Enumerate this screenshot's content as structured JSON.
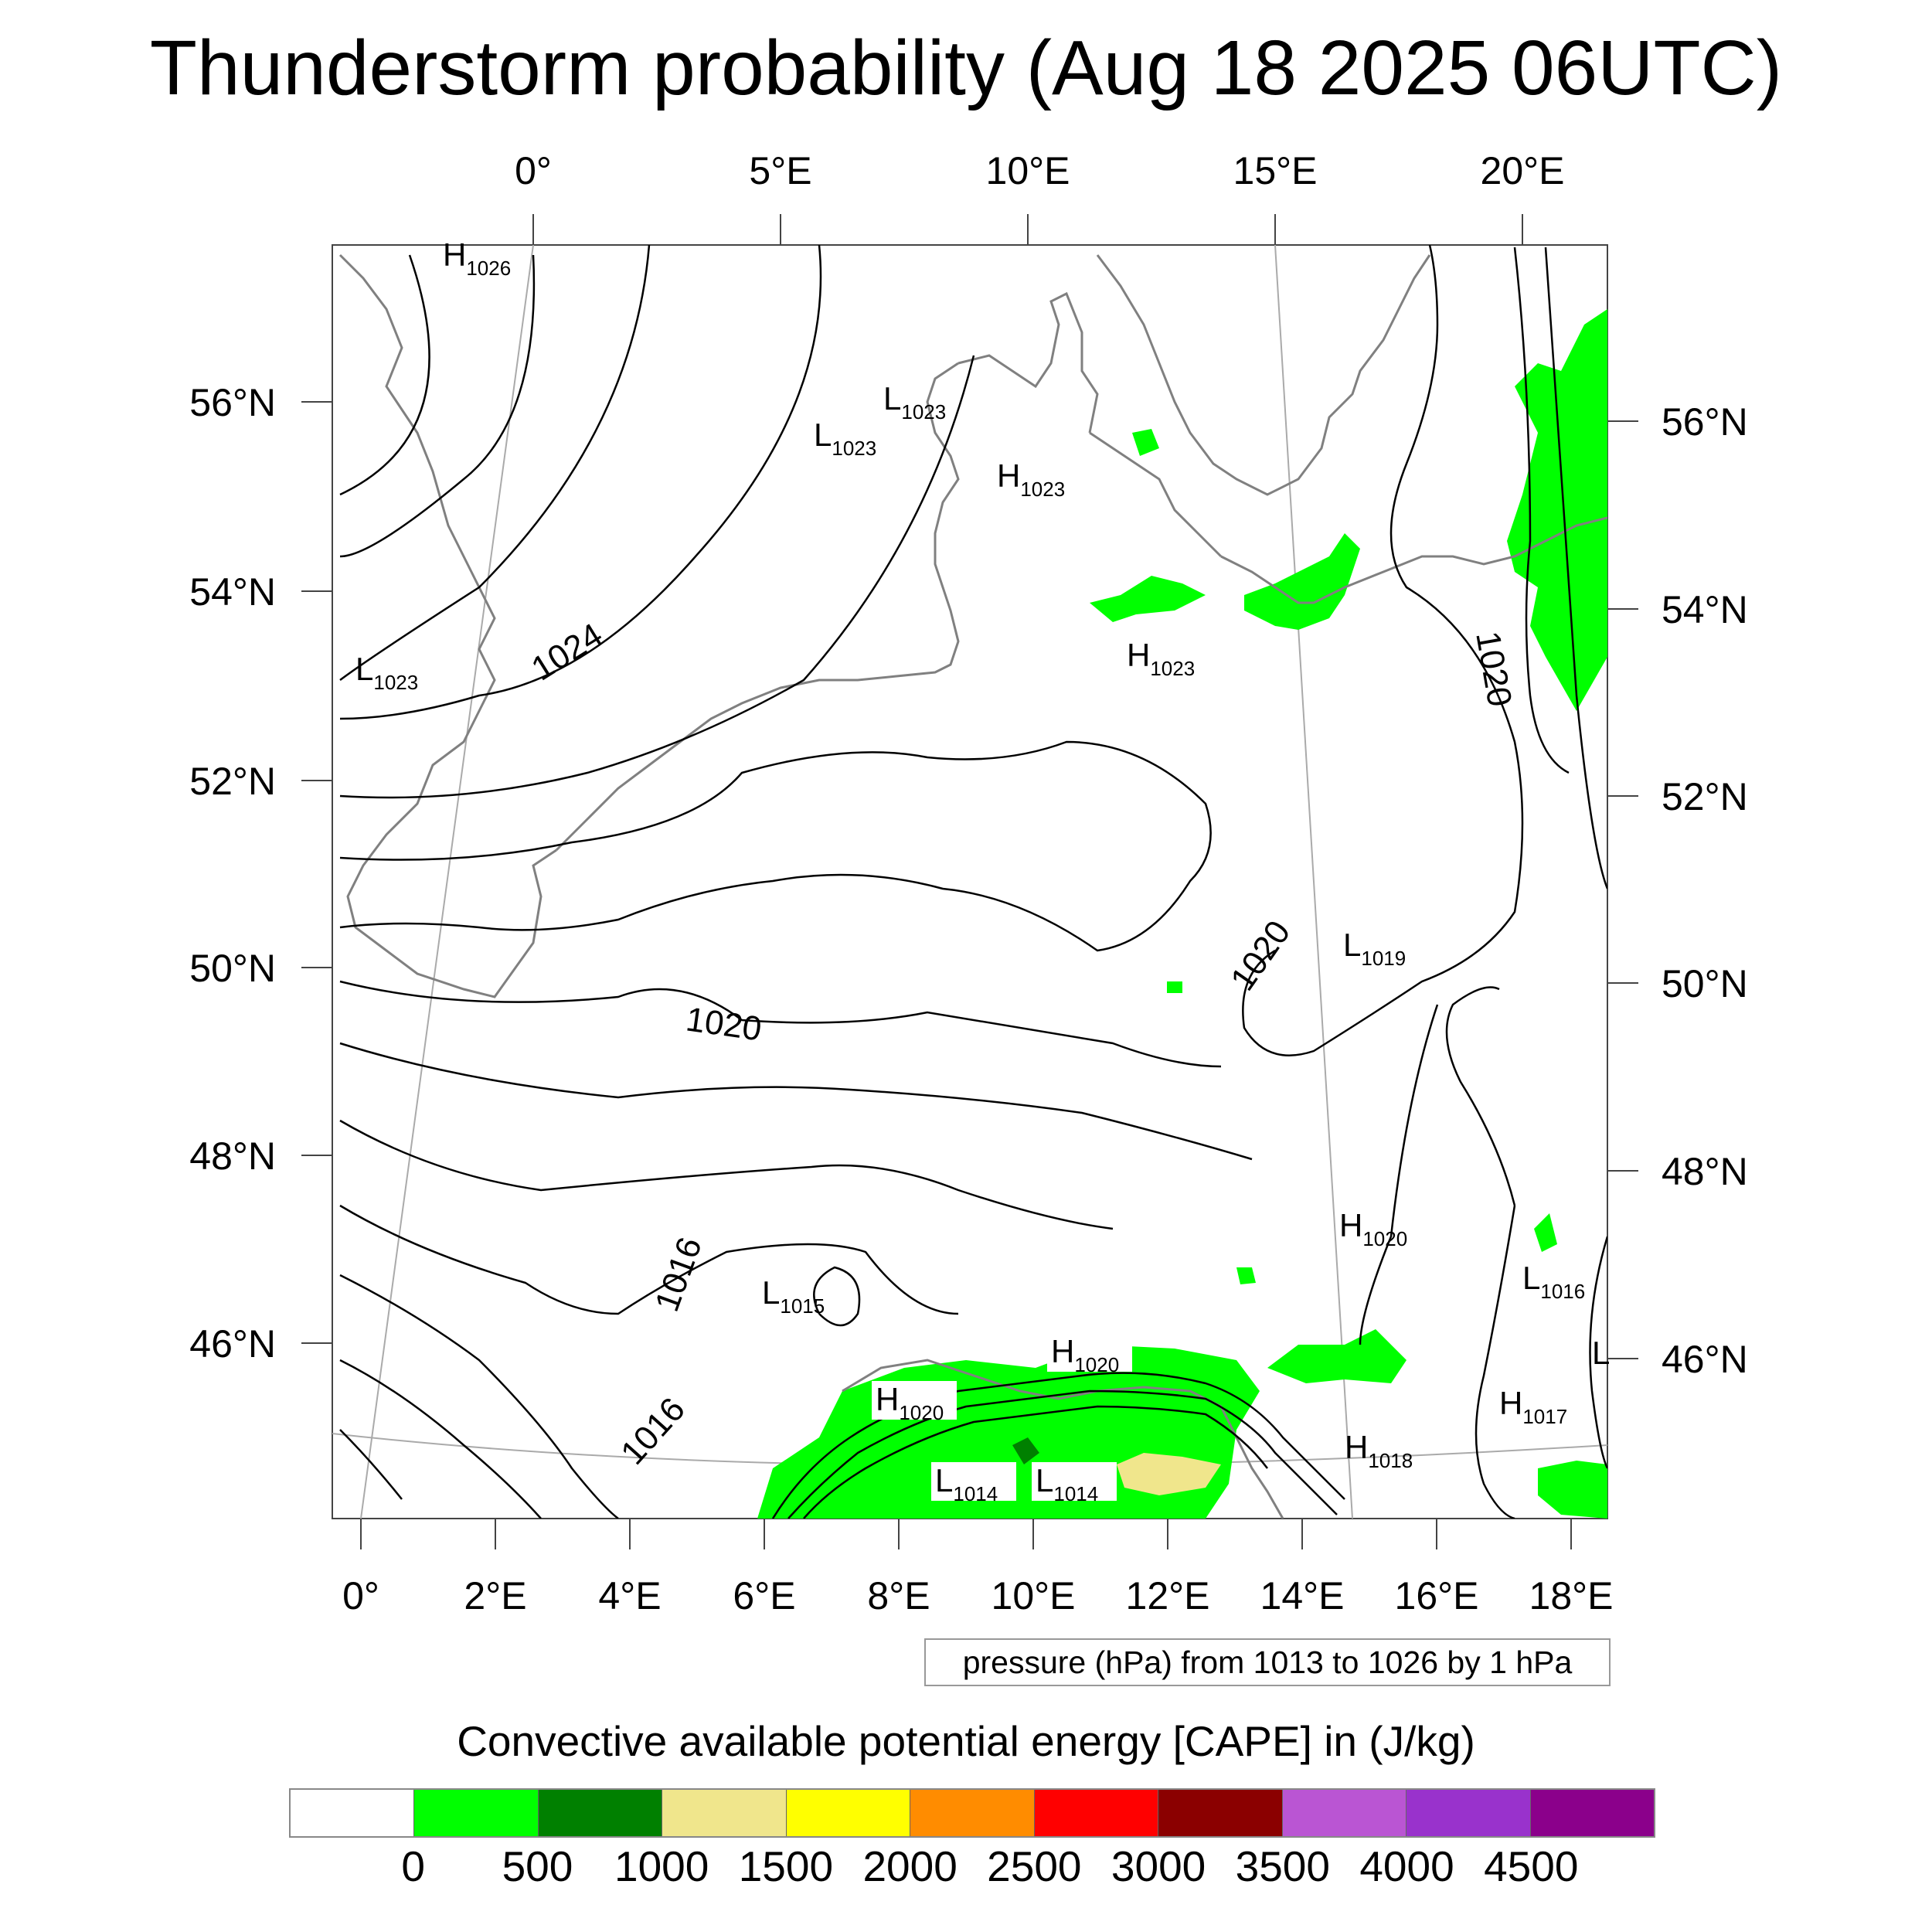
{
  "title": "Thunderstorm probability (Aug 18 2025 06UTC)",
  "axes": {
    "top_lon": [
      "0°",
      "5°E",
      "10°E",
      "15°E",
      "20°E"
    ],
    "bottom_lon": [
      "0°",
      "2°E",
      "4°E",
      "6°E",
      "8°E",
      "10°E",
      "12°E",
      "14°E",
      "16°E",
      "18°E"
    ],
    "left_lat": [
      "56°N",
      "54°N",
      "52°N",
      "50°N",
      "48°N",
      "46°N"
    ],
    "right_lat": [
      "56°N",
      "54°N",
      "52°N",
      "50°N",
      "48°N",
      "46°N"
    ]
  },
  "contour_labels": [
    "1024",
    "1020",
    "1020",
    "1020",
    "1016",
    "1016"
  ],
  "pressure_centers": [
    {
      "type": "H",
      "value": "1026"
    },
    {
      "type": "L",
      "value": "1023"
    },
    {
      "type": "L",
      "value": "1023"
    },
    {
      "type": "L",
      "value": "1023"
    },
    {
      "type": "H",
      "value": "1023"
    },
    {
      "type": "H",
      "value": "1023"
    },
    {
      "type": "L",
      "value": "1019"
    },
    {
      "type": "H",
      "value": "1020"
    },
    {
      "type": "L",
      "value": "1015"
    },
    {
      "type": "L",
      "value": "1016"
    },
    {
      "type": "H",
      "value": "1020"
    },
    {
      "type": "H",
      "value": "1020"
    },
    {
      "type": "H",
      "value": "1017"
    },
    {
      "type": "H",
      "value": "1018"
    },
    {
      "type": "L",
      "value": "1014"
    },
    {
      "type": "L",
      "value": "1014"
    },
    {
      "type": "L",
      "value": ""
    }
  ],
  "pressure_note": "pressure (hPa) from 1013 to 1026 by 1 hPa",
  "cape_title": "Convective available potential energy [CAPE] in (J/kg)",
  "colorbar": {
    "colors": [
      "#ffffff",
      "#00ff00",
      "#008000",
      "#f0e68c",
      "#ffff00",
      "#ff8c00",
      "#ff0000",
      "#8b0000",
      "#ba55d3",
      "#9932cc",
      "#8b008b"
    ],
    "labels": [
      "0",
      "500",
      "1000",
      "1500",
      "2000",
      "2500",
      "3000",
      "3500",
      "4000",
      "4500"
    ]
  }
}
